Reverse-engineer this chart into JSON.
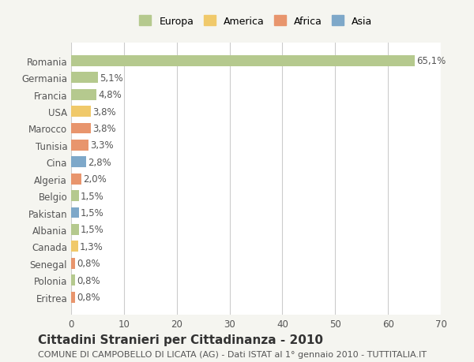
{
  "countries": [
    "Romania",
    "Germania",
    "Francia",
    "USA",
    "Marocco",
    "Tunisia",
    "Cina",
    "Algeria",
    "Belgio",
    "Pakistan",
    "Albania",
    "Canada",
    "Senegal",
    "Polonia",
    "Eritrea"
  ],
  "values": [
    65.1,
    5.1,
    4.8,
    3.8,
    3.8,
    3.3,
    2.8,
    2.0,
    1.5,
    1.5,
    1.5,
    1.3,
    0.8,
    0.8,
    0.8
  ],
  "labels": [
    "65,1%",
    "5,1%",
    "4,8%",
    "3,8%",
    "3,8%",
    "3,3%",
    "2,8%",
    "2,0%",
    "1,5%",
    "1,5%",
    "1,5%",
    "1,3%",
    "0,8%",
    "0,8%",
    "0,8%"
  ],
  "continents": [
    "Europa",
    "Europa",
    "Europa",
    "America",
    "Africa",
    "Africa",
    "Asia",
    "Africa",
    "Europa",
    "Asia",
    "Europa",
    "America",
    "Africa",
    "Europa",
    "Africa"
  ],
  "colors": {
    "Europa": "#b5c98e",
    "America": "#f0c96a",
    "Africa": "#e8956d",
    "Asia": "#7ea8c9"
  },
  "legend_colors": {
    "Europa": "#b5c98e",
    "America": "#f0c96a",
    "Africa": "#e8956d",
    "Asia": "#7ea8c9"
  },
  "xlim": [
    0,
    70
  ],
  "xticks": [
    0,
    10,
    20,
    30,
    40,
    50,
    60,
    70
  ],
  "title": "Cittadini Stranieri per Cittadinanza - 2010",
  "subtitle": "COMUNE DI CAMPOBELLO DI LICATA (AG) - Dati ISTAT al 1° gennaio 2010 - TUTTITALIA.IT",
  "background_color": "#f5f5f0",
  "plot_background_color": "#ffffff",
  "grid_color": "#cccccc",
  "label_fontsize": 8.5,
  "tick_fontsize": 8.5,
  "title_fontsize": 11,
  "subtitle_fontsize": 8
}
